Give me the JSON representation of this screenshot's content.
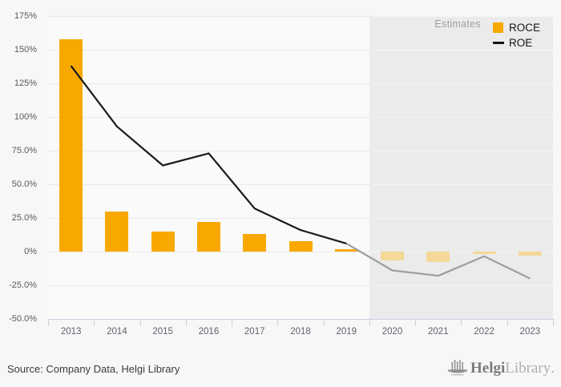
{
  "chart_data": {
    "type": "bar+line",
    "title": "",
    "xlabel": "",
    "ylabel": "",
    "units": "%",
    "categories": [
      "2013",
      "2014",
      "2015",
      "2016",
      "2017",
      "2018",
      "2019",
      "2020",
      "2021",
      "2022",
      "2023"
    ],
    "series": [
      {
        "name": "ROCE",
        "type": "bar",
        "values": [
          158,
          30,
          15,
          22,
          13,
          7.5,
          2,
          -6.5,
          -8,
          -2,
          -3
        ]
      },
      {
        "name": "ROE",
        "type": "line",
        "values": [
          138,
          93,
          64,
          73,
          32,
          16,
          6,
          -14,
          -18,
          -3.5,
          -20
        ]
      }
    ],
    "ylim": [
      -50,
      175
    ],
    "y_ticks": [
      {
        "value": 175,
        "label": "175%"
      },
      {
        "value": 150,
        "label": "150%"
      },
      {
        "value": 125,
        "label": "125%"
      },
      {
        "value": 100,
        "label": "100%"
      },
      {
        "value": 75,
        "label": "75.0%"
      },
      {
        "value": 50,
        "label": "50.0%"
      },
      {
        "value": 25,
        "label": "25.0%"
      },
      {
        "value": 0,
        "label": "0%"
      },
      {
        "value": -25,
        "label": "-25.0%"
      },
      {
        "value": -50,
        "label": "-50.0%"
      }
    ],
    "estimate_start_index": 7,
    "estimates_label": "Estimates",
    "grid": true,
    "legend_position": "top-right",
    "colors": {
      "bar_actual": "#F8A800",
      "bar_estimate": "#F3D897",
      "line_actual": "#1A1A1A",
      "line_estimate": "#9E9E9E",
      "estimates_region": "#EBEBEB",
      "plot_background": "#FAFAFA",
      "page_background": "#F7F7F7",
      "axis": "#C9D2E3",
      "gridline_left": "#E9E9E9",
      "gridline_right": "#F4F4F4",
      "tick_text": "#595959"
    }
  },
  "legend": {
    "items": [
      {
        "label": "ROCE",
        "swatch": "square"
      },
      {
        "label": "ROE",
        "swatch": "line"
      }
    ]
  },
  "footer": {
    "source_text": "Source: Company Data, Helgi Library",
    "logo": {
      "bold": "Helgi",
      "light": "Library",
      "suffix": "."
    }
  }
}
